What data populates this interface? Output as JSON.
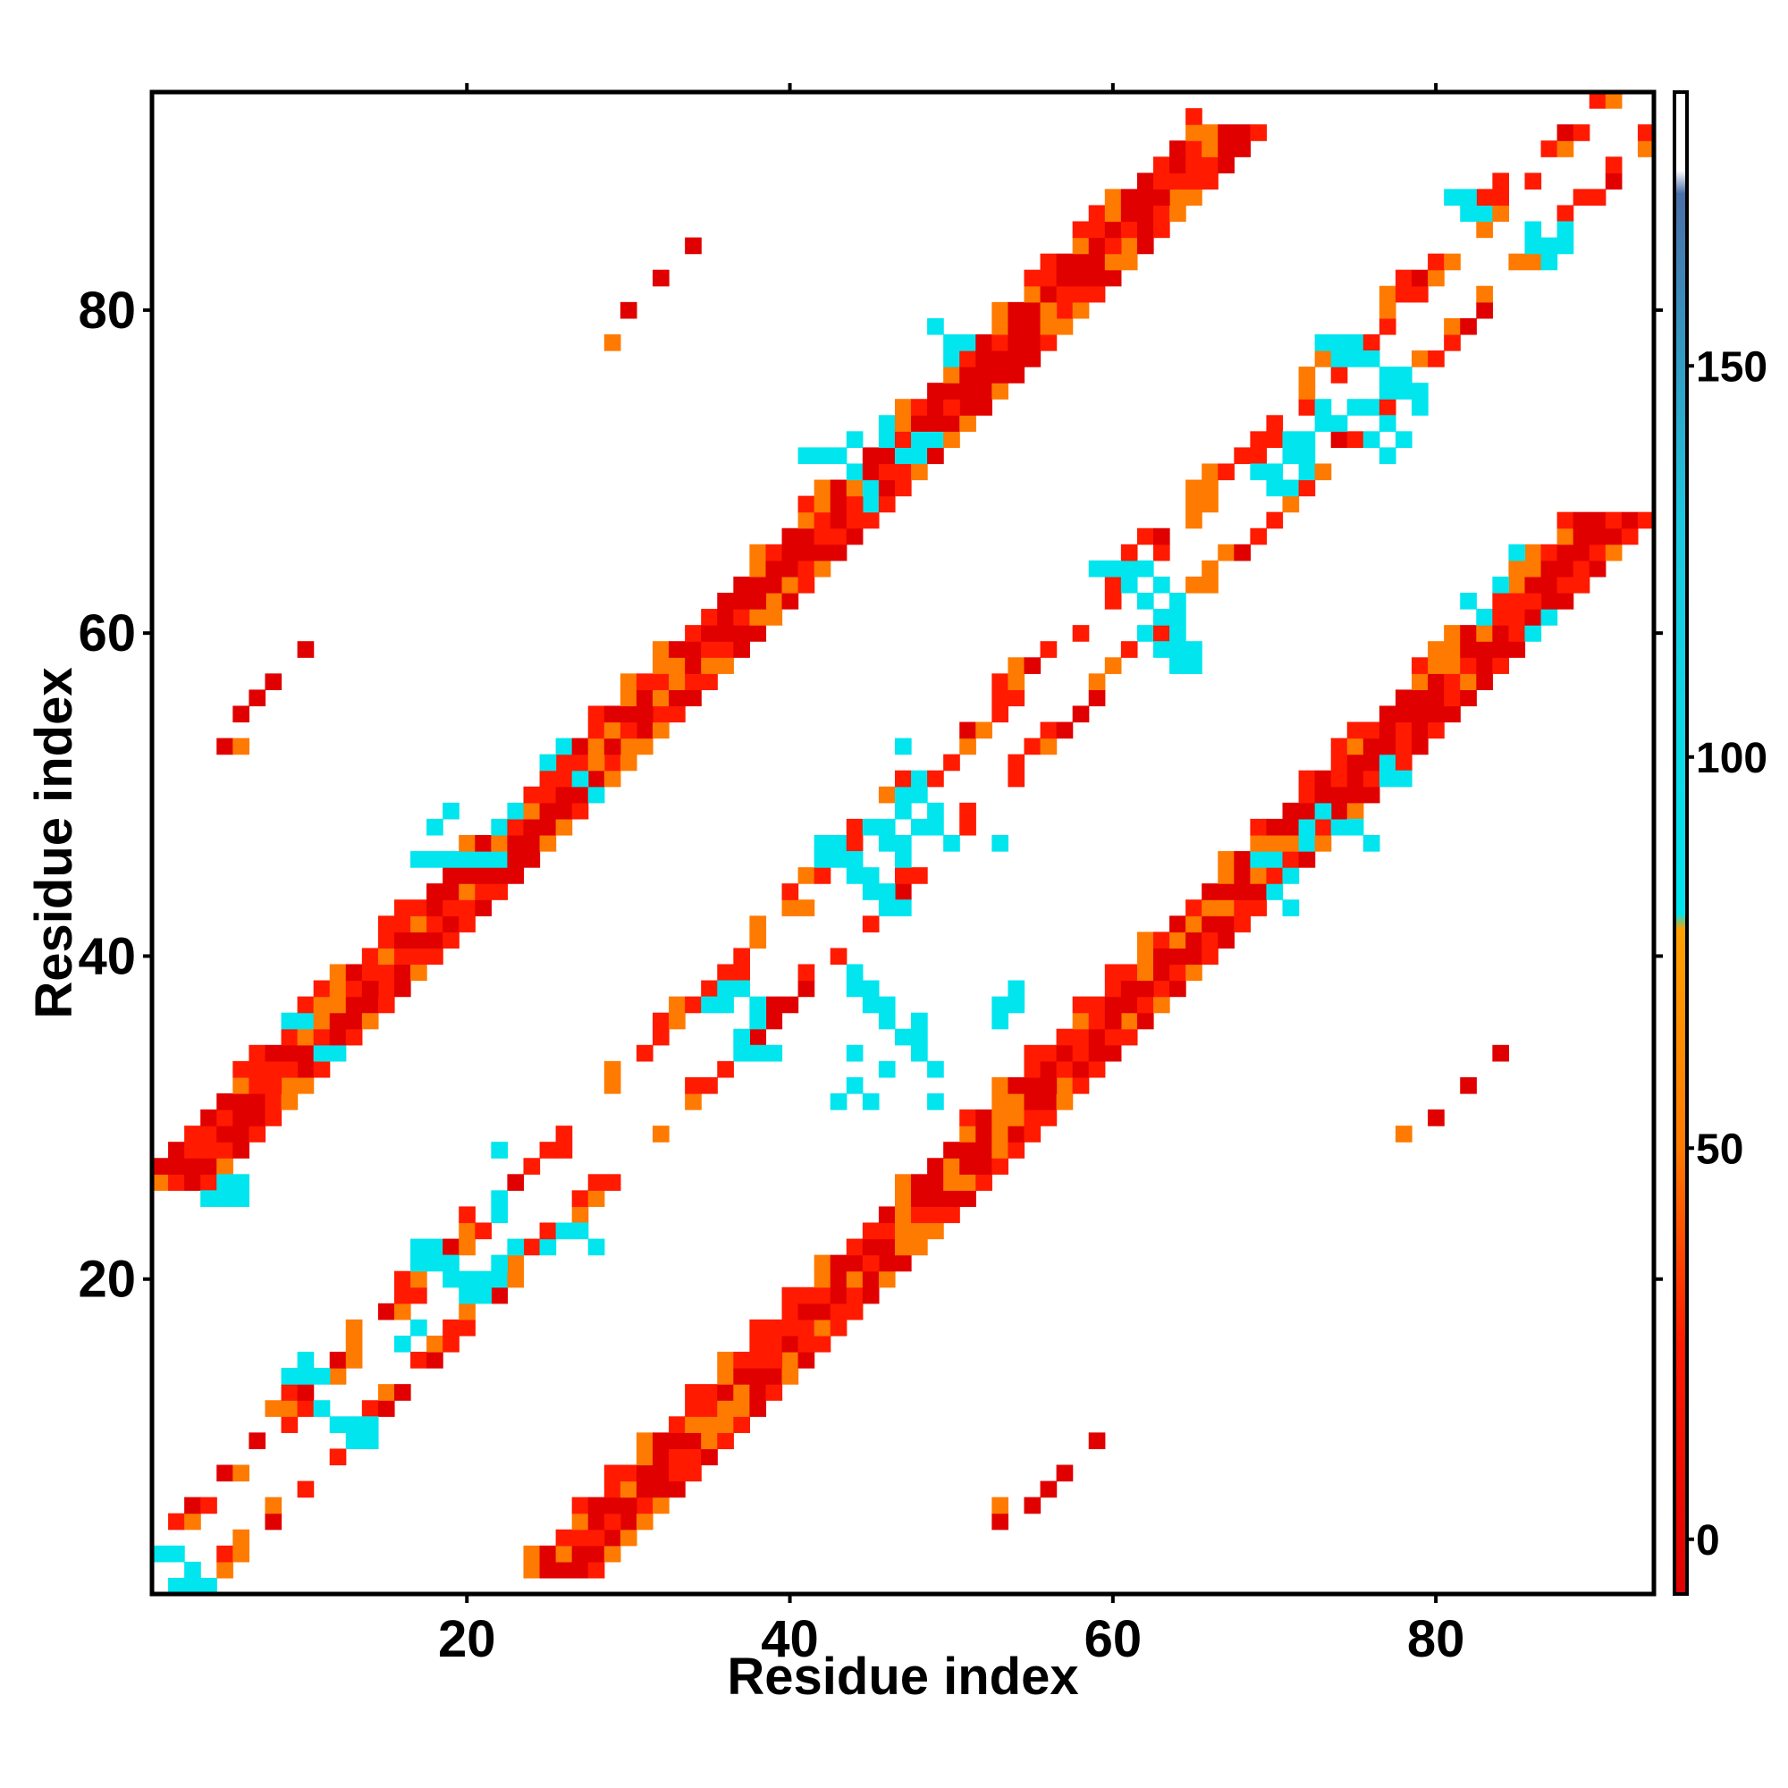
{
  "chart_data": {
    "type": "heatmap",
    "title": "",
    "xlabel": "Residue index",
    "ylabel": "Residue index",
    "xlim": [
      0.5,
      93.5
    ],
    "ylim": [
      0.5,
      93.5
    ],
    "x_ticks": [
      20,
      40,
      60,
      80
    ],
    "y_ticks": [
      20,
      40,
      60,
      80
    ],
    "x_tick_labels": [
      "20",
      "40",
      "60",
      "80"
    ],
    "y_tick_labels": [
      "20",
      "40",
      "60",
      "80"
    ],
    "grid": false,
    "colorbar": {
      "range": [
        -7,
        185
      ],
      "ticks": [
        0,
        50,
        100,
        150
      ],
      "tick_labels": [
        "0",
        "50",
        "100",
        "150"
      ],
      "stops": [
        {
          "value": -7,
          "color": "#e00000"
        },
        {
          "value": 25,
          "color": "#ff1a00"
        },
        {
          "value": 50,
          "color": "#ff7a00"
        },
        {
          "value": 78,
          "color": "#ffa000"
        },
        {
          "value": 80,
          "color": "#00e5ee"
        },
        {
          "value": 130,
          "color": "#1cc8e0"
        },
        {
          "value": 172,
          "color": "#4a6fa8"
        },
        {
          "value": 175,
          "color": "#ffffff"
        },
        {
          "value": 185,
          "color": "#ffffff"
        }
      ]
    },
    "value_legend": {
      "red": 10,
      "orange_red": 40,
      "orange": 65,
      "cyan": 100
    },
    "bands": [
      {
        "name": "upper diagonal i+24",
        "from": [
          2,
          26
        ],
        "to": [
          67,
          91
        ],
        "halfwidth": 2
      },
      {
        "name": "main diagonal",
        "from": [
          2,
          2
        ],
        "to": [
          93,
          93
        ],
        "halfwidth": 3,
        "hollow_center": true
      },
      {
        "name": "lower diagonal i-24",
        "from": [
          26,
          2
        ],
        "to": [
          91,
          67
        ],
        "halfwidth": 2
      }
    ],
    "isolated_points": [
      {
        "x": 5,
        "y": 53,
        "value": 10
      },
      {
        "x": 6,
        "y": 53,
        "value": 65
      },
      {
        "x": 6,
        "y": 55,
        "value": 10
      },
      {
        "x": 7,
        "y": 56,
        "value": 10
      },
      {
        "x": 8,
        "y": 57,
        "value": 10
      },
      {
        "x": 10,
        "y": 59,
        "value": 10
      },
      {
        "x": 29,
        "y": 78,
        "value": 65
      },
      {
        "x": 30,
        "y": 80,
        "value": 10
      },
      {
        "x": 32,
        "y": 82,
        "value": 10
      },
      {
        "x": 34,
        "y": 84,
        "value": 10
      },
      {
        "x": 53,
        "y": 5,
        "value": 10
      },
      {
        "x": 53,
        "y": 6,
        "value": 65
      },
      {
        "x": 55,
        "y": 6,
        "value": 10
      },
      {
        "x": 56,
        "y": 7,
        "value": 10
      },
      {
        "x": 57,
        "y": 8,
        "value": 10
      },
      {
        "x": 59,
        "y": 10,
        "value": 10
      },
      {
        "x": 78,
        "y": 29,
        "value": 65
      },
      {
        "x": 80,
        "y": 30,
        "value": 10
      },
      {
        "x": 82,
        "y": 32,
        "value": 10
      },
      {
        "x": 84,
        "y": 34,
        "value": 10
      },
      {
        "x": 22,
        "y": 28,
        "value": 100
      },
      {
        "x": 28,
        "y": 22,
        "value": 100
      },
      {
        "x": 47,
        "y": 53,
        "value": 100
      },
      {
        "x": 53,
        "y": 47,
        "value": 100
      },
      {
        "x": 48,
        "y": 72,
        "value": 100
      },
      {
        "x": 72,
        "y": 48,
        "value": 100
      },
      {
        "x": 78,
        "y": 72,
        "value": 100
      },
      {
        "x": 64,
        "y": 58,
        "value": 100
      }
    ],
    "cyan_patches": [
      [
        2,
        3
      ],
      [
        3,
        2
      ],
      [
        1,
        3
      ],
      [
        2,
        1
      ],
      [
        3,
        1
      ],
      [
        4,
        1
      ],
      [
        5,
        25
      ],
      [
        6,
        25
      ],
      [
        5,
        26
      ],
      [
        6,
        26
      ],
      [
        4,
        25
      ],
      [
        9,
        36
      ],
      [
        10,
        36
      ],
      [
        11,
        34
      ],
      [
        12,
        34
      ],
      [
        17,
        46
      ],
      [
        18,
        46
      ],
      [
        19,
        46
      ],
      [
        18,
        48
      ],
      [
        19,
        49
      ],
      [
        20,
        46
      ],
      [
        21,
        46
      ],
      [
        22,
        46
      ],
      [
        22,
        48
      ],
      [
        23,
        49
      ],
      [
        25,
        52
      ],
      [
        26,
        53
      ],
      [
        27,
        51
      ],
      [
        28,
        50
      ],
      [
        9,
        14
      ],
      [
        10,
        14
      ],
      [
        11,
        14
      ],
      [
        10,
        15
      ],
      [
        11,
        12
      ],
      [
        12,
        11
      ],
      [
        13,
        11
      ],
      [
        13,
        10
      ],
      [
        14,
        10
      ],
      [
        14,
        11
      ],
      [
        16,
        16
      ],
      [
        17,
        17
      ],
      [
        17,
        21
      ],
      [
        18,
        21
      ],
      [
        19,
        21
      ],
      [
        17,
        22
      ],
      [
        18,
        22
      ],
      [
        19,
        20
      ],
      [
        20,
        19
      ],
      [
        21,
        19
      ],
      [
        20,
        20
      ],
      [
        21,
        20
      ],
      [
        22,
        21
      ],
      [
        22,
        20
      ],
      [
        22,
        24
      ],
      [
        22,
        25
      ],
      [
        25,
        22
      ],
      [
        26,
        23
      ],
      [
        27,
        23
      ],
      [
        23,
        22
      ],
      [
        35,
        37
      ],
      [
        36,
        37
      ],
      [
        37,
        35
      ],
      [
        38,
        37
      ],
      [
        37,
        38
      ],
      [
        38,
        36
      ],
      [
        36,
        38
      ],
      [
        39,
        34
      ],
      [
        38,
        34
      ],
      [
        37,
        34
      ],
      [
        41,
        71
      ],
      [
        42,
        71
      ],
      [
        43,
        71
      ],
      [
        44,
        72
      ],
      [
        46,
        73
      ],
      [
        46,
        72
      ],
      [
        47,
        71
      ],
      [
        48,
        71
      ],
      [
        49,
        72
      ],
      [
        44,
        70
      ],
      [
        45,
        69
      ],
      [
        45,
        68
      ],
      [
        49,
        79
      ],
      [
        50,
        78
      ],
      [
        50,
        77
      ],
      [
        51,
        78
      ],
      [
        42,
        46
      ],
      [
        43,
        46
      ],
      [
        44,
        46
      ],
      [
        42,
        47
      ],
      [
        43,
        47
      ],
      [
        44,
        45
      ],
      [
        45,
        45
      ],
      [
        46,
        44
      ],
      [
        46,
        43
      ],
      [
        47,
        43
      ],
      [
        45,
        44
      ],
      [
        47,
        46
      ],
      [
        47,
        47
      ],
      [
        46,
        47
      ],
      [
        48,
        48
      ],
      [
        49,
        48
      ],
      [
        50,
        47
      ],
      [
        49,
        49
      ],
      [
        47,
        49
      ],
      [
        47,
        50
      ],
      [
        48,
        50
      ],
      [
        48,
        51
      ],
      [
        46,
        48
      ],
      [
        45,
        48
      ],
      [
        44,
        32
      ],
      [
        43,
        31
      ],
      [
        45,
        31
      ],
      [
        46,
        33
      ],
      [
        44,
        34
      ],
      [
        49,
        31
      ],
      [
        48,
        34
      ],
      [
        49,
        33
      ],
      [
        45,
        37
      ],
      [
        46,
        37
      ],
      [
        44,
        38
      ],
      [
        45,
        38
      ],
      [
        44,
        39
      ],
      [
        46,
        36
      ],
      [
        47,
        35
      ],
      [
        48,
        35
      ],
      [
        48,
        36
      ],
      [
        53,
        37
      ],
      [
        54,
        37
      ],
      [
        54,
        38
      ],
      [
        53,
        36
      ],
      [
        61,
        64
      ],
      [
        62,
        64
      ],
      [
        60,
        64
      ],
      [
        59,
        64
      ],
      [
        61,
        63
      ],
      [
        62,
        62
      ],
      [
        63,
        61
      ],
      [
        64,
        61
      ],
      [
        64,
        62
      ],
      [
        63,
        63
      ],
      [
        62,
        60
      ],
      [
        63,
        59
      ],
      [
        64,
        60
      ],
      [
        64,
        59
      ],
      [
        65,
        58
      ],
      [
        65,
        59
      ],
      [
        69,
        70
      ],
      [
        70,
        70
      ],
      [
        71,
        71
      ],
      [
        71,
        72
      ],
      [
        72,
        71
      ],
      [
        72,
        72
      ],
      [
        73,
        73
      ],
      [
        73,
        74
      ],
      [
        74,
        73
      ],
      [
        72,
        70
      ],
      [
        71,
        69
      ],
      [
        70,
        69
      ],
      [
        73,
        78
      ],
      [
        74,
        78
      ],
      [
        75,
        78
      ],
      [
        74,
        77
      ],
      [
        75,
        77
      ],
      [
        76,
        77
      ],
      [
        77,
        76
      ],
      [
        78,
        76
      ],
      [
        78,
        75
      ],
      [
        79,
        75
      ],
      [
        79,
        74
      ],
      [
        77,
        75
      ],
      [
        75,
        74
      ],
      [
        76,
        74
      ],
      [
        76,
        72
      ],
      [
        77,
        71
      ],
      [
        78,
        72
      ],
      [
        77,
        73
      ],
      [
        69,
        46
      ],
      [
        70,
        46
      ],
      [
        71,
        45
      ],
      [
        70,
        44
      ],
      [
        72,
        47
      ],
      [
        72,
        48
      ],
      [
        73,
        49
      ],
      [
        74,
        48
      ],
      [
        75,
        48
      ],
      [
        76,
        47
      ],
      [
        71,
        43
      ],
      [
        77,
        51
      ],
      [
        78,
        51
      ],
      [
        77,
        52
      ],
      [
        82,
        62
      ],
      [
        83,
        61
      ],
      [
        84,
        63
      ],
      [
        85,
        65
      ],
      [
        86,
        60
      ],
      [
        87,
        61
      ],
      [
        81,
        87
      ],
      [
        82,
        87
      ],
      [
        83,
        86
      ],
      [
        82,
        86
      ],
      [
        86,
        85
      ],
      [
        87,
        84
      ],
      [
        87,
        83
      ],
      [
        86,
        84
      ],
      [
        88,
        85
      ],
      [
        88,
        84
      ]
    ]
  }
}
